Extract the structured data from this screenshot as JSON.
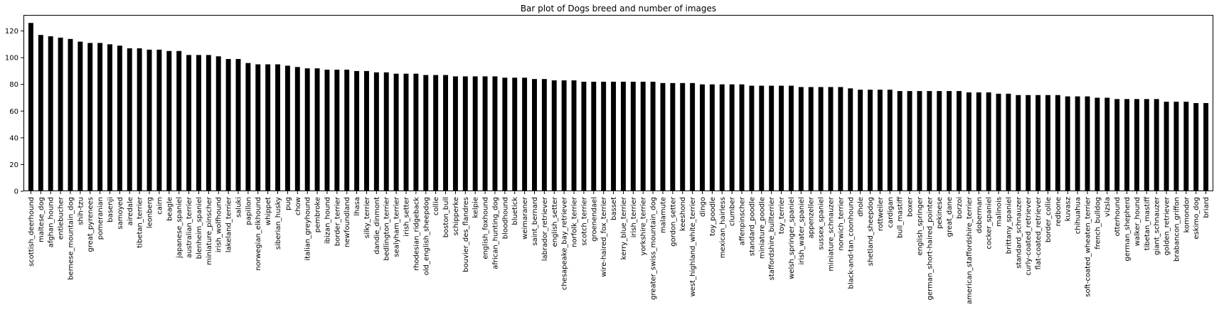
{
  "chart_data": {
    "type": "bar",
    "title": "Bar plot of Dogs breed and number of images",
    "xlabel": "",
    "ylabel": "",
    "ylim": [
      0,
      132
    ],
    "yticks": [
      0,
      20,
      40,
      60,
      80,
      100,
      120
    ],
    "bar_color": "#000000",
    "grid": false,
    "categories": [
      "scottish_deerhound",
      "maltese_dog",
      "afghan_hound",
      "entlebucher",
      "bernese_mountain_dog",
      "shih-tzu",
      "great_pyrenees",
      "pomeranian",
      "basenji",
      "samoyed",
      "airedale",
      "tibetan_terrier",
      "leonberg",
      "cairn",
      "beagle",
      "japanese_spaniel",
      "australian_terrier",
      "blenheim_spaniel",
      "miniature_pinscher",
      "irish_wolfhound",
      "lakeland_terrier",
      "saluki",
      "papillon",
      "norwegian_elkhound",
      "whippet",
      "siberian_husky",
      "pug",
      "chow",
      "italian_greyhound",
      "pembroke",
      "ibizan_hound",
      "border_terrier",
      "newfoundland",
      "lhasa",
      "silky_terrier",
      "dandie_dinmont",
      "bedlington_terrier",
      "sealyham_terrier",
      "irish_setter",
      "rhodesian_ridgeback",
      "old_english_sheepdog",
      "collie",
      "boston_bull",
      "schipperke",
      "bouvier_des_flandres",
      "kelpie",
      "english_foxhound",
      "african_hunting_dog",
      "bloodhound",
      "bluetick",
      "weimaraner",
      "saint_bernard",
      "labrador_retriever",
      "english_setter",
      "chesapeake_bay_retriever",
      "norfolk_terrier",
      "scotch_terrier",
      "groenendael",
      "wire-haired_fox_terrier",
      "basset",
      "kerry_blue_terrier",
      "irish_terrier",
      "yorkshire_terrier",
      "greater_swiss_mountain_dog",
      "malamute",
      "gordon_setter",
      "keeshond",
      "west_highland_white_terrier",
      "dingo",
      "toy_poodle",
      "mexican_hairless",
      "clumber",
      "affenpinscher",
      "standard_poodle",
      "miniature_poodle",
      "staffordshire_bullterrier",
      "toy_terrier",
      "welsh_springer_spaniel",
      "irish_water_spaniel",
      "appenzeller",
      "sussex_spaniel",
      "miniature_schnauzer",
      "norwich_terrier",
      "black-and-tan_coonhound",
      "dhole",
      "shetland_sheepdog",
      "rottweiler",
      "cardigan",
      "bull_mastiff",
      "boxer",
      "english_springer",
      "german_short-haired_pointer",
      "pekinese",
      "great_dane",
      "borzoi",
      "american_staffordshire_terrier",
      "doberman",
      "cocker_spaniel",
      "malinois",
      "brittany_spaniel",
      "standard_schnauzer",
      "curly-coated_retriever",
      "flat-coated_retriever",
      "border_collie",
      "redbone",
      "kuvasz",
      "chihuahua",
      "soft-coated_wheaten_terrier",
      "french_bulldog",
      "vizsla",
      "otterhound",
      "german_shepherd",
      "walker_hound",
      "tibetan_mastiff",
      "giant_schnauzer",
      "golden_retriever",
      "brabancon_griffon",
      "komondor",
      "eskimo_dog",
      "briard"
    ],
    "values": [
      126,
      117,
      116,
      115,
      114,
      112,
      111,
      111,
      110,
      109,
      107,
      107,
      106,
      106,
      105,
      105,
      102,
      102,
      102,
      101,
      99,
      99,
      96,
      95,
      95,
      95,
      94,
      93,
      92,
      92,
      91,
      91,
      91,
      90,
      90,
      89,
      89,
      88,
      88,
      88,
      87,
      87,
      87,
      86,
      86,
      86,
      86,
      86,
      85,
      85,
      85,
      84,
      84,
      83,
      83,
      83,
      82,
      82,
      82,
      82,
      82,
      82,
      82,
      82,
      81,
      81,
      81,
      81,
      80,
      80,
      80,
      80,
      80,
      79,
      79,
      79,
      79,
      79,
      78,
      78,
      78,
      78,
      78,
      77,
      76,
      76,
      76,
      76,
      75,
      75,
      75,
      75,
      75,
      75,
      75,
      74,
      74,
      74,
      73,
      73,
      72,
      72,
      72,
      72,
      72,
      71,
      71,
      71,
      70,
      70,
      69,
      69,
      69,
      69,
      69,
      67,
      67,
      67,
      66,
      66
    ]
  }
}
